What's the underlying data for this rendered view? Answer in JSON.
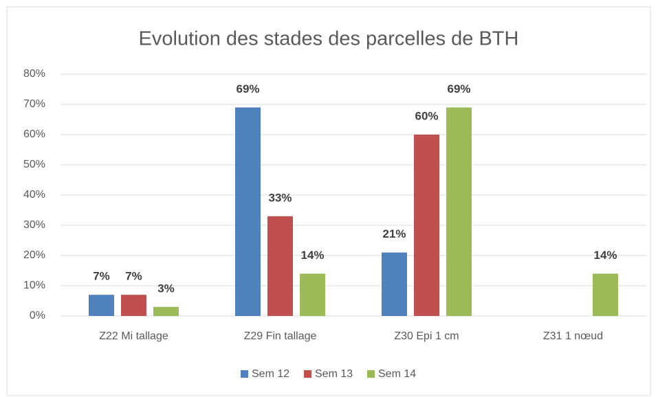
{
  "chart_data": {
    "type": "bar",
    "title": "Evolution des stades des parcelles de BTH",
    "categories": [
      "Z22 Mi tallage",
      "Z29 Fin tallage",
      "Z30 Epi 1 cm",
      "Z31 1 nœud"
    ],
    "series": [
      {
        "name": "Sem 12",
        "color": "#4f81bd",
        "values": [
          7,
          69,
          21,
          null
        ],
        "value_labels": [
          "7%",
          "69%",
          "21%",
          null
        ]
      },
      {
        "name": "Sem 13",
        "color": "#c0504d",
        "values": [
          7,
          33,
          60,
          null
        ],
        "value_labels": [
          "7%",
          "33%",
          "60%",
          null
        ]
      },
      {
        "name": "Sem 14",
        "color": "#9bbb59",
        "values": [
          3,
          14,
          69,
          14
        ],
        "value_labels": [
          "3%",
          "14%",
          "69%",
          "14%"
        ]
      }
    ],
    "ylim": [
      0,
      80
    ],
    "yticks": [
      {
        "value": 0,
        "label": "0%"
      },
      {
        "value": 10,
        "label": "10%"
      },
      {
        "value": 20,
        "label": "20%"
      },
      {
        "value": 30,
        "label": "30%"
      },
      {
        "value": 40,
        "label": "40%"
      },
      {
        "value": 50,
        "label": "50%"
      },
      {
        "value": 60,
        "label": "60%"
      },
      {
        "value": 70,
        "label": "70%"
      },
      {
        "value": 80,
        "label": "80%"
      }
    ],
    "grid": true,
    "legend": "bottom"
  }
}
